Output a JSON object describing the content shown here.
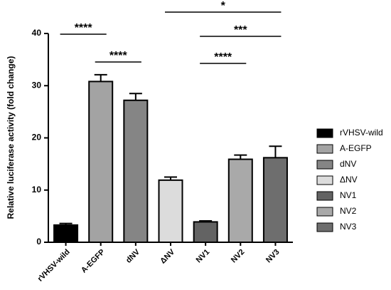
{
  "chart_data": {
    "type": "bar",
    "y_label": "Relative luciferase activity (fold change)",
    "categories": [
      "rVHSV-wild",
      "A-EGFP",
      "dNV",
      "ΔNV",
      "NV1",
      "NV2",
      "NV3"
    ],
    "values": [
      3.3,
      30.8,
      27.2,
      11.9,
      3.9,
      15.9,
      16.2
    ],
    "errors": [
      0.3,
      1.3,
      1.3,
      0.6,
      0.2,
      0.8,
      2.2
    ],
    "colors": [
      "#000000",
      "#a3a3a3",
      "#858585",
      "#dcdcdc",
      "#636363",
      "#a9a9a9",
      "#6e6e6e"
    ],
    "ylim": [
      0,
      40
    ],
    "yticks": [
      0,
      10,
      20,
      30,
      40
    ],
    "legend": "right",
    "annotations": [
      "****",
      "****",
      "*",
      "***",
      "****"
    ]
  }
}
